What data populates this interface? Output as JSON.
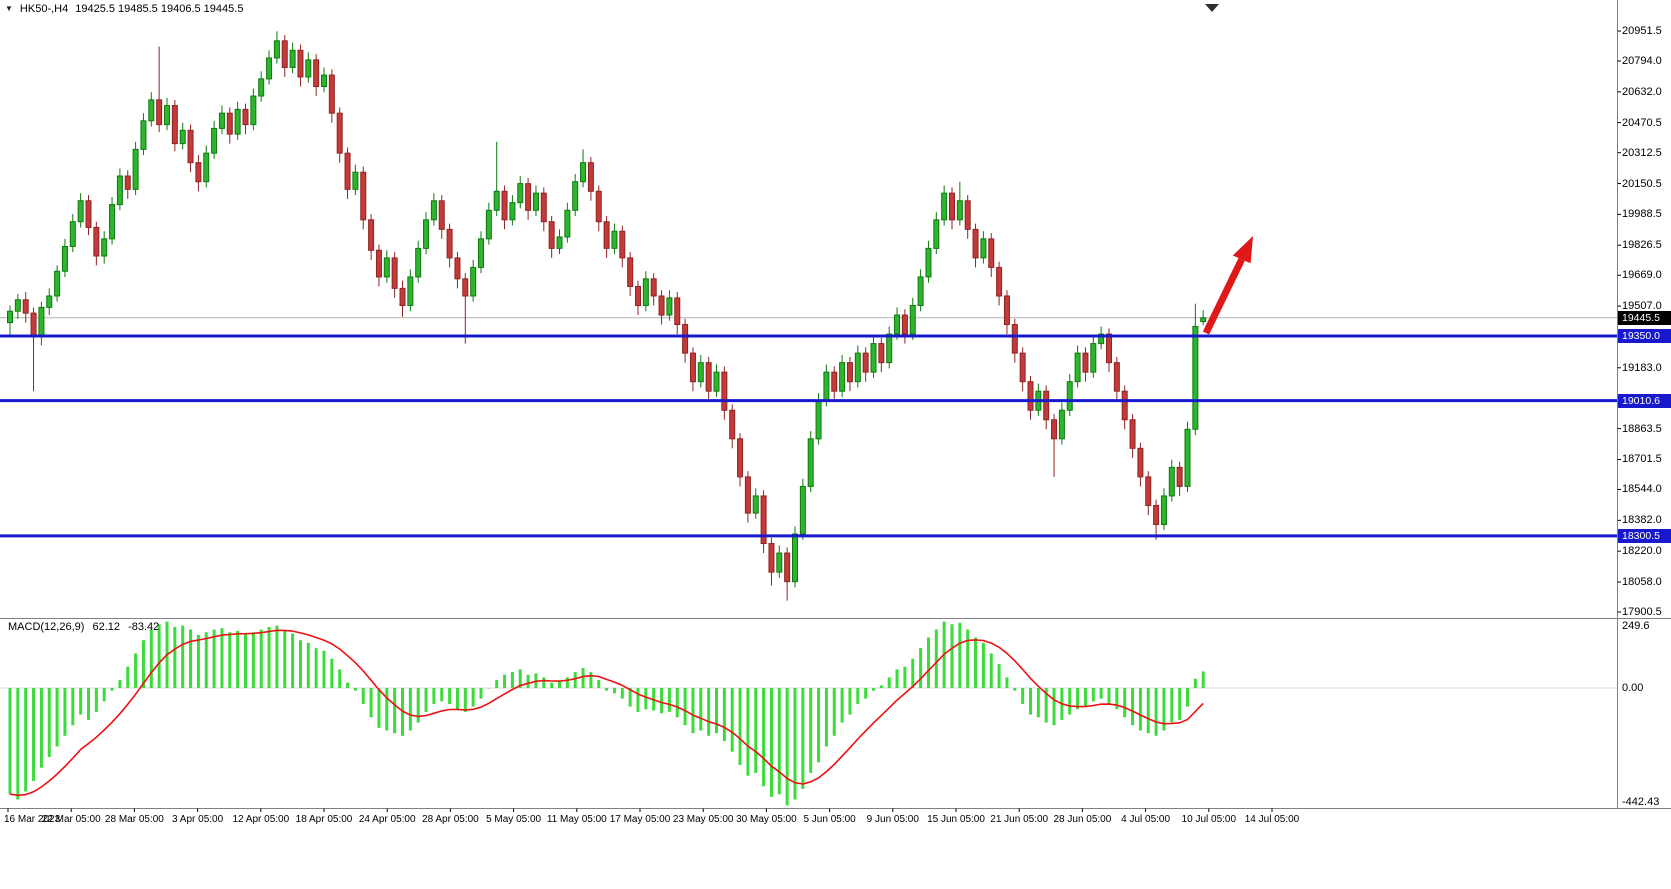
{
  "title": {
    "symbol_timeframe": "HK50-,H4",
    "ohlc": "19425.5 19485.5 19406.5 19445.5"
  },
  "macd_panel": {
    "label": "MACD(12,26,9)",
    "value_main": "62.12",
    "value_signal": "-83.42",
    "signal_period": 9
  },
  "colors": {
    "background": "#FFFFFF",
    "bull": "#2FB42F",
    "bull_border": "#0E7A0E",
    "bear": "#C33A3A",
    "bear_border": "#8F2323",
    "macd_histogram": "#3BDB3B",
    "macd_signal": "#EE1111",
    "level_line": "#1818CC",
    "current_price_line": "#B4B4B4",
    "current_price_tag_bg": "#000000",
    "tag_text": "#FFFFFF",
    "axis_text": "#000000",
    "divider": "#808080",
    "zero_line": "#D8D8D8",
    "arrow": "#E01818",
    "shift_marker": "#303030"
  },
  "chart_data": {
    "type": "candlestick",
    "symbol": "HK50",
    "timeframe": "H4",
    "title": "HK50-,H4",
    "grid": "off",
    "ohlc_current": {
      "open": 19425.5,
      "high": 19485.5,
      "low": 19406.5,
      "close": 19445.5
    },
    "current_price": 19445.5,
    "current_price_label": "19445.5",
    "levels": [
      19350.0,
      19010.6,
      18300.5
    ],
    "level_labels": [
      "19350.0",
      "19010.6",
      "18300.5"
    ],
    "y_ticks": [
      "20951.5",
      "20794.0",
      "20632.0",
      "20470.5",
      "20312.5",
      "20150.5",
      "19988.5",
      "19826.5",
      "19669.0",
      "19507.0",
      "19183.0",
      "18863.5",
      "18701.5",
      "18544.0",
      "18382.0",
      "18220.0",
      "18058.0",
      "17900.5"
    ],
    "x_ticks": [
      "16 Mar 2023",
      "22 Mar 05:00",
      "28 Mar 05:00",
      "3 Apr 05:00",
      "12 Apr 05:00",
      "18 Apr 05:00",
      "24 Apr 05:00",
      "28 Apr 05:00",
      "5 May 05:00",
      "11 May 05:00",
      "17 May 05:00",
      "23 May 05:00",
      "30 May 05:00",
      "5 Jun 05:00",
      "9 Jun 05:00",
      "15 Jun 05:00",
      "21 Jun 05:00",
      "28 Jun 05:00",
      "4 Jul 05:00",
      "10 Jul 05:00",
      "14 Jul 05:00"
    ],
    "y_range": [
      17869,
      21041
    ],
    "candles": [
      [
        19420,
        19510,
        19350,
        19480
      ],
      [
        19480,
        19570,
        19440,
        19540
      ],
      [
        19540,
        19580,
        19420,
        19470
      ],
      [
        19470,
        19500,
        19060,
        19350
      ],
      [
        19350,
        19530,
        19300,
        19500
      ],
      [
        19500,
        19600,
        19460,
        19560
      ],
      [
        19560,
        19720,
        19530,
        19690
      ],
      [
        19690,
        19860,
        19660,
        19820
      ],
      [
        19820,
        19990,
        19790,
        19950
      ],
      [
        19950,
        20100,
        19920,
        20060
      ],
      [
        20060,
        20090,
        19880,
        19920
      ],
      [
        19920,
        19950,
        19720,
        19770
      ],
      [
        19770,
        19900,
        19730,
        19860
      ],
      [
        19860,
        20080,
        19830,
        20040
      ],
      [
        20040,
        20230,
        20010,
        20190
      ],
      [
        20190,
        20220,
        20070,
        20120
      ],
      [
        20120,
        20370,
        20090,
        20330
      ],
      [
        20330,
        20520,
        20300,
        20480
      ],
      [
        20480,
        20630,
        20450,
        20590
      ],
      [
        20590,
        20870,
        20420,
        20460
      ],
      [
        20460,
        20600,
        20430,
        20560
      ],
      [
        20560,
        20590,
        20320,
        20360
      ],
      [
        20360,
        20470,
        20330,
        20430
      ],
      [
        20430,
        20460,
        20210,
        20260
      ],
      [
        20260,
        20300,
        20110,
        20160
      ],
      [
        20160,
        20350,
        20130,
        20310
      ],
      [
        20310,
        20480,
        20280,
        20440
      ],
      [
        20440,
        20560,
        20410,
        20520
      ],
      [
        20520,
        20550,
        20360,
        20410
      ],
      [
        20410,
        20580,
        20380,
        20540
      ],
      [
        20540,
        20570,
        20410,
        20460
      ],
      [
        20460,
        20650,
        20430,
        20610
      ],
      [
        20610,
        20740,
        20580,
        20700
      ],
      [
        20700,
        20850,
        20670,
        20810
      ],
      [
        20810,
        20950,
        20780,
        20900
      ],
      [
        20900,
        20930,
        20710,
        20760
      ],
      [
        20760,
        20890,
        20730,
        20850
      ],
      [
        20850,
        20880,
        20660,
        20710
      ],
      [
        20710,
        20840,
        20680,
        20800
      ],
      [
        20800,
        20830,
        20610,
        20660
      ],
      [
        20660,
        20760,
        20630,
        20720
      ],
      [
        20720,
        20750,
        20470,
        20520
      ],
      [
        20520,
        20550,
        20260,
        20310
      ],
      [
        20310,
        20340,
        20070,
        20120
      ],
      [
        20120,
        20250,
        20090,
        20210
      ],
      [
        20210,
        20240,
        19910,
        19960
      ],
      [
        19960,
        19990,
        19750,
        19800
      ],
      [
        19800,
        19830,
        19610,
        19660
      ],
      [
        19660,
        19800,
        19630,
        19760
      ],
      [
        19760,
        19790,
        19550,
        19600
      ],
      [
        19600,
        19640,
        19450,
        19510
      ],
      [
        19510,
        19700,
        19480,
        19660
      ],
      [
        19660,
        19850,
        19630,
        19810
      ],
      [
        19810,
        20000,
        19780,
        19960
      ],
      [
        19960,
        20100,
        19930,
        20060
      ],
      [
        20060,
        20090,
        19860,
        19910
      ],
      [
        19910,
        19940,
        19710,
        19760
      ],
      [
        19760,
        19790,
        19600,
        19650
      ],
      [
        19650,
        19680,
        19310,
        19560
      ],
      [
        19560,
        19750,
        19530,
        19710
      ],
      [
        19710,
        19900,
        19680,
        19860
      ],
      [
        19860,
        20050,
        19830,
        20010
      ],
      [
        20010,
        20370,
        19980,
        20110
      ],
      [
        20110,
        20140,
        19910,
        19960
      ],
      [
        19960,
        20090,
        19930,
        20050
      ],
      [
        20050,
        20190,
        20020,
        20150
      ],
      [
        20150,
        20180,
        19960,
        20010
      ],
      [
        20010,
        20140,
        19980,
        20100
      ],
      [
        20100,
        20130,
        19900,
        19950
      ],
      [
        19950,
        19980,
        19760,
        19810
      ],
      [
        19810,
        19910,
        19780,
        19870
      ],
      [
        19870,
        20050,
        19840,
        20010
      ],
      [
        20010,
        20200,
        19980,
        20160
      ],
      [
        20160,
        20330,
        20130,
        20260
      ],
      [
        20260,
        20290,
        20060,
        20110
      ],
      [
        20110,
        20140,
        19900,
        19950
      ],
      [
        19950,
        19980,
        19760,
        19810
      ],
      [
        19810,
        19940,
        19780,
        19900
      ],
      [
        19900,
        19930,
        19710,
        19760
      ],
      [
        19760,
        19790,
        19560,
        19610
      ],
      [
        19610,
        19640,
        19460,
        19510
      ],
      [
        19510,
        19690,
        19480,
        19650
      ],
      [
        19650,
        19680,
        19510,
        19560
      ],
      [
        19560,
        19590,
        19410,
        19460
      ],
      [
        19460,
        19590,
        19430,
        19550
      ],
      [
        19550,
        19580,
        19360,
        19410
      ],
      [
        19410,
        19440,
        19210,
        19260
      ],
      [
        19260,
        19290,
        19060,
        19110
      ],
      [
        19110,
        19250,
        19080,
        19210
      ],
      [
        19210,
        19240,
        19010,
        19060
      ],
      [
        19060,
        19200,
        19030,
        19160
      ],
      [
        19160,
        19190,
        18910,
        18960
      ],
      [
        18960,
        18990,
        18760,
        18810
      ],
      [
        18810,
        18840,
        18560,
        18610
      ],
      [
        18610,
        18640,
        18370,
        18420
      ],
      [
        18420,
        18550,
        18390,
        18510
      ],
      [
        18510,
        18540,
        18210,
        18260
      ],
      [
        18260,
        18290,
        18040,
        18110
      ],
      [
        18110,
        18250,
        18080,
        18210
      ],
      [
        18210,
        18240,
        17960,
        18060
      ],
      [
        18060,
        18350,
        18030,
        18310
      ],
      [
        18310,
        18600,
        18280,
        18560
      ],
      [
        18560,
        18850,
        18530,
        18810
      ],
      [
        18810,
        19050,
        18780,
        19010
      ],
      [
        19010,
        19200,
        18980,
        19160
      ],
      [
        19160,
        19190,
        19010,
        19060
      ],
      [
        19060,
        19250,
        19030,
        19210
      ],
      [
        19210,
        19240,
        19060,
        19110
      ],
      [
        19110,
        19300,
        19080,
        19260
      ],
      [
        19260,
        19290,
        19110,
        19160
      ],
      [
        19160,
        19350,
        19130,
        19310
      ],
      [
        19310,
        19340,
        19160,
        19210
      ],
      [
        19210,
        19400,
        19180,
        19360
      ],
      [
        19360,
        19500,
        19330,
        19460
      ],
      [
        19460,
        19490,
        19310,
        19360
      ],
      [
        19360,
        19550,
        19330,
        19510
      ],
      [
        19510,
        19700,
        19480,
        19660
      ],
      [
        19660,
        19850,
        19630,
        19810
      ],
      [
        19810,
        20000,
        19780,
        19960
      ],
      [
        19960,
        20140,
        19930,
        20100
      ],
      [
        20100,
        20130,
        19910,
        19960
      ],
      [
        19960,
        20160,
        19930,
        20060
      ],
      [
        20060,
        20090,
        19860,
        19910
      ],
      [
        19910,
        19940,
        19710,
        19760
      ],
      [
        19760,
        19900,
        19730,
        19860
      ],
      [
        19860,
        19890,
        19660,
        19710
      ],
      [
        19710,
        19740,
        19510,
        19560
      ],
      [
        19560,
        19590,
        19360,
        19410
      ],
      [
        19410,
        19440,
        19210,
        19260
      ],
      [
        19260,
        19290,
        19060,
        19110
      ],
      [
        19110,
        19140,
        18910,
        18960
      ],
      [
        18960,
        19100,
        18930,
        19060
      ],
      [
        19060,
        19090,
        18860,
        18910
      ],
      [
        18910,
        18940,
        18610,
        18810
      ],
      [
        18810,
        19000,
        18780,
        18960
      ],
      [
        18960,
        19150,
        18930,
        19110
      ],
      [
        19110,
        19300,
        19080,
        19260
      ],
      [
        19260,
        19290,
        19110,
        19160
      ],
      [
        19160,
        19350,
        19130,
        19310
      ],
      [
        19310,
        19400,
        19280,
        19360
      ],
      [
        19360,
        19390,
        19160,
        19210
      ],
      [
        19210,
        19240,
        19010,
        19060
      ],
      [
        19060,
        19090,
        18860,
        18910
      ],
      [
        18910,
        18940,
        18710,
        18760
      ],
      [
        18760,
        18790,
        18560,
        18610
      ],
      [
        18610,
        18640,
        18410,
        18460
      ],
      [
        18460,
        18490,
        18280,
        18360
      ],
      [
        18360,
        18550,
        18330,
        18510
      ],
      [
        18510,
        18700,
        18480,
        18660
      ],
      [
        18660,
        18690,
        18510,
        18560
      ],
      [
        18560,
        18900,
        18530,
        18860
      ],
      [
        18860,
        19520,
        18830,
        19400
      ],
      [
        19425.5,
        19485.5,
        19406.5,
        19445.5
      ]
    ],
    "macd": {
      "params": "12,26,9",
      "main_last": 62.12,
      "signal_last": -83.42,
      "axis_labels": [
        "249.6",
        "0.00",
        "-442.43"
      ],
      "range": [
        -442.43,
        249.6
      ],
      "histogram": [
        -400,
        -420,
        -390,
        -350,
        -300,
        -260,
        -220,
        -180,
        -140,
        -100,
        -120,
        -90,
        -50,
        -10,
        30,
        80,
        130,
        180,
        220,
        240,
        250,
        230,
        235,
        220,
        200,
        210,
        220,
        225,
        210,
        215,
        205,
        210,
        220,
        230,
        235,
        215,
        205,
        180,
        170,
        150,
        140,
        110,
        70,
        20,
        -10,
        -60,
        -110,
        -150,
        -160,
        -170,
        -180,
        -160,
        -130,
        -90,
        -60,
        -50,
        -60,
        -80,
        -90,
        -70,
        -40,
        0,
        30,
        50,
        60,
        70,
        50,
        55,
        40,
        20,
        25,
        40,
        60,
        75,
        60,
        30,
        -10,
        -20,
        -40,
        -70,
        -90,
        -80,
        -85,
        -95,
        -90,
        -110,
        -140,
        -170,
        -160,
        -180,
        -170,
        -200,
        -240,
        -290,
        -330,
        -320,
        -370,
        -410,
        -400,
        -442,
        -420,
        -380,
        -320,
        -280,
        -220,
        -180,
        -130,
        -100,
        -60,
        -40,
        -10,
        10,
        40,
        70,
        80,
        110,
        150,
        190,
        220,
        250,
        240,
        245,
        220,
        190,
        170,
        130,
        90,
        40,
        -10,
        -60,
        -100,
        -110,
        -130,
        -140,
        -120,
        -100,
        -80,
        -70,
        -50,
        -40,
        -60,
        -80,
        -110,
        -140,
        -160,
        -170,
        -180,
        -160,
        -130,
        -120,
        -70,
        35,
        62.12
      ]
    },
    "annotations": [
      {
        "type": "arrow",
        "direction": "up-right",
        "color": "#E01818"
      }
    ]
  }
}
